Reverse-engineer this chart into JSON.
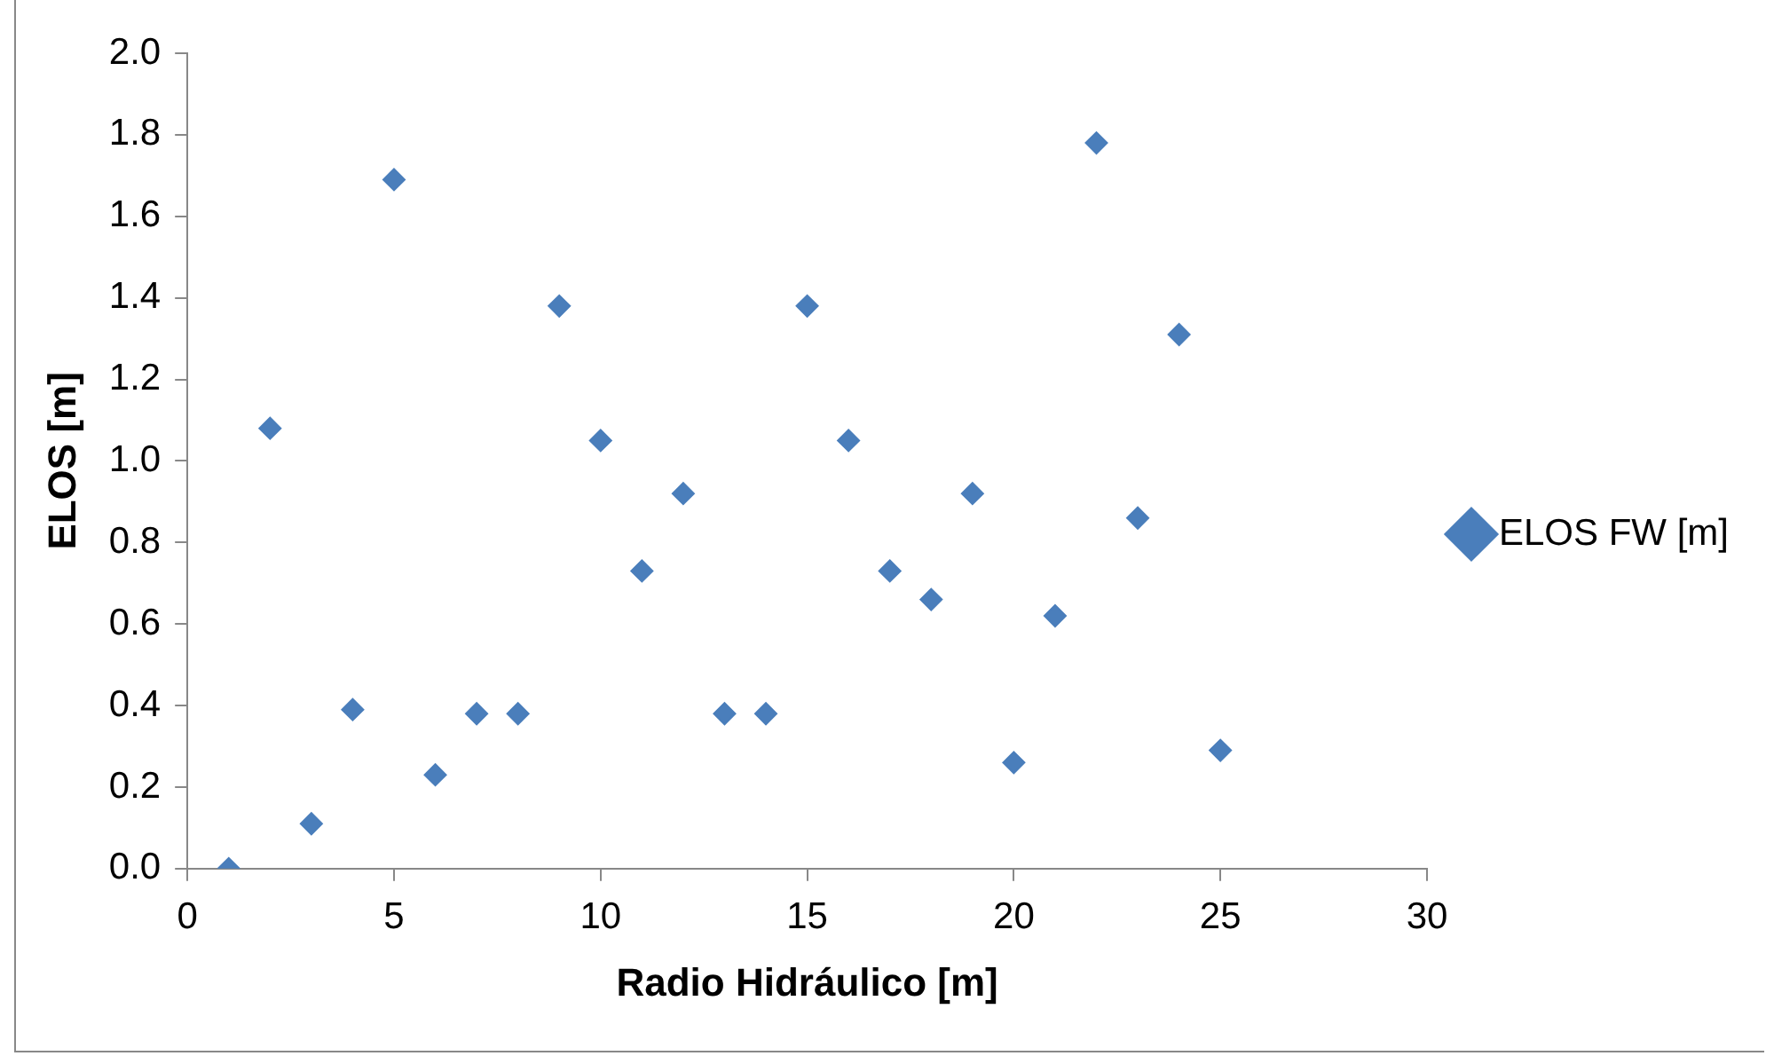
{
  "chart_data": {
    "type": "scatter",
    "xlabel": "Radio Hidráulico [m]",
    "ylabel": "ELOS [m]",
    "x": [
      1,
      2,
      3,
      4,
      5,
      6,
      7,
      8,
      9,
      10,
      11,
      12,
      13,
      14,
      15,
      16,
      17,
      18,
      19,
      20,
      21,
      22,
      23,
      24,
      25
    ],
    "series": [
      {
        "name": "ELOS FW [m]",
        "color": "#4a7ebb",
        "values": [
          0.0,
          1.08,
          0.11,
          0.39,
          1.69,
          0.23,
          0.38,
          0.38,
          1.38,
          1.05,
          0.73,
          0.92,
          0.38,
          0.38,
          1.38,
          1.05,
          0.73,
          0.66,
          0.92,
          0.26,
          0.62,
          1.78,
          0.86,
          1.31,
          0.29
        ]
      }
    ],
    "xlim": [
      0,
      30
    ],
    "xticks": [
      0,
      5,
      10,
      15,
      20,
      25,
      30
    ],
    "ylim": [
      0,
      2
    ],
    "yticks": [
      {
        "value": 0,
        "label": "0.0"
      },
      {
        "value": 0.2,
        "label": "0.2"
      },
      {
        "value": 0.4,
        "label": "0.4"
      },
      {
        "value": 0.6,
        "label": "0.6"
      },
      {
        "value": 0.8,
        "label": "0.8"
      },
      {
        "value": 1,
        "label": "1.0"
      },
      {
        "value": 1.2,
        "label": "1.2"
      },
      {
        "value": 1.4,
        "label": "1.4"
      },
      {
        "value": 1.6,
        "label": "1.6"
      },
      {
        "value": 1.8,
        "label": "1.8"
      },
      {
        "value": 2,
        "label": "2.0"
      }
    ],
    "grid": false,
    "legend": "right",
    "marker": "diamond"
  }
}
